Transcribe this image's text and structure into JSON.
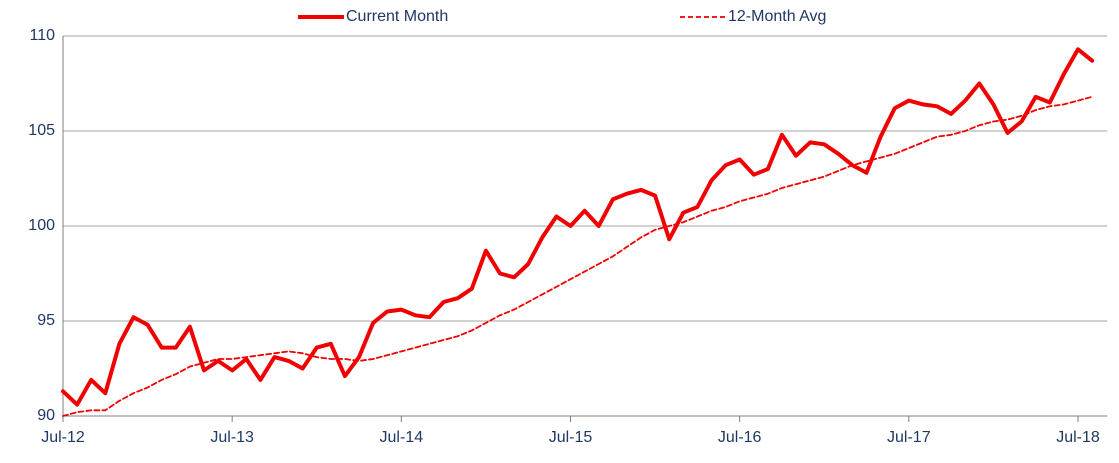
{
  "chart_data": {
    "type": "line",
    "categories": [
      "Jul-12",
      null,
      null,
      null,
      null,
      null,
      null,
      null,
      null,
      null,
      null,
      null,
      "Jul-13",
      null,
      null,
      null,
      null,
      null,
      null,
      null,
      null,
      null,
      null,
      null,
      "Jul-14",
      null,
      null,
      null,
      null,
      null,
      null,
      null,
      null,
      null,
      null,
      null,
      "Jul-15",
      null,
      null,
      null,
      null,
      null,
      null,
      null,
      null,
      null,
      null,
      null,
      "Jul-16",
      null,
      null,
      null,
      null,
      null,
      null,
      null,
      null,
      null,
      null,
      null,
      "Jul-17",
      null,
      null,
      null,
      null,
      null,
      null,
      null,
      null,
      null,
      null,
      null,
      "Jul-18",
      null
    ],
    "series": [
      {
        "name": "Current Month",
        "color": "#f00000",
        "line_style": "solid",
        "values": [
          91.3,
          90.6,
          91.9,
          91.2,
          93.8,
          95.2,
          94.8,
          93.6,
          93.6,
          94.7,
          92.4,
          92.9,
          92.4,
          93.0,
          91.9,
          93.1,
          92.9,
          92.5,
          93.6,
          93.8,
          92.1,
          93.1,
          94.9,
          95.5,
          95.6,
          95.3,
          95.2,
          96.0,
          96.2,
          96.7,
          98.7,
          97.5,
          97.3,
          98.0,
          99.4,
          100.5,
          100.0,
          100.8,
          100.0,
          101.4,
          101.7,
          101.9,
          101.6,
          99.3,
          100.7,
          101.0,
          102.4,
          103.2,
          103.5,
          102.7,
          103.0,
          104.8,
          103.7,
          104.4,
          104.3,
          103.8,
          103.2,
          102.8,
          104.7,
          106.2,
          106.6,
          106.4,
          106.3,
          105.9,
          106.6,
          107.5,
          106.4,
          104.9,
          105.5,
          106.8,
          106.5,
          108.0,
          109.3,
          108.7
        ]
      },
      {
        "name": "12-Month Avg",
        "color": "#f00000",
        "line_style": "dashed",
        "values": [
          90.0,
          90.2,
          90.3,
          90.3,
          90.8,
          91.2,
          91.5,
          91.9,
          92.2,
          92.6,
          92.8,
          93.0,
          93.0,
          93.1,
          93.2,
          93.3,
          93.4,
          93.3,
          93.1,
          93.0,
          93.0,
          92.9,
          93.0,
          93.2,
          93.4,
          93.6,
          93.8,
          94.0,
          94.2,
          94.5,
          94.9,
          95.3,
          95.6,
          96.0,
          96.4,
          96.8,
          97.2,
          97.6,
          98.0,
          98.4,
          98.9,
          99.4,
          99.8,
          100.0,
          100.2,
          100.5,
          100.8,
          101.0,
          101.3,
          101.5,
          101.7,
          102.0,
          102.2,
          102.4,
          102.6,
          102.9,
          103.2,
          103.4,
          103.6,
          103.8,
          104.1,
          104.4,
          104.7,
          104.8,
          105.0,
          105.3,
          105.5,
          105.6,
          105.8,
          106.1,
          106.3,
          106.4,
          106.6,
          106.8
        ]
      }
    ],
    "ylim": [
      90,
      110
    ],
    "yticks": [
      90,
      95,
      100,
      105,
      110
    ],
    "grid": true,
    "legend": "top"
  }
}
